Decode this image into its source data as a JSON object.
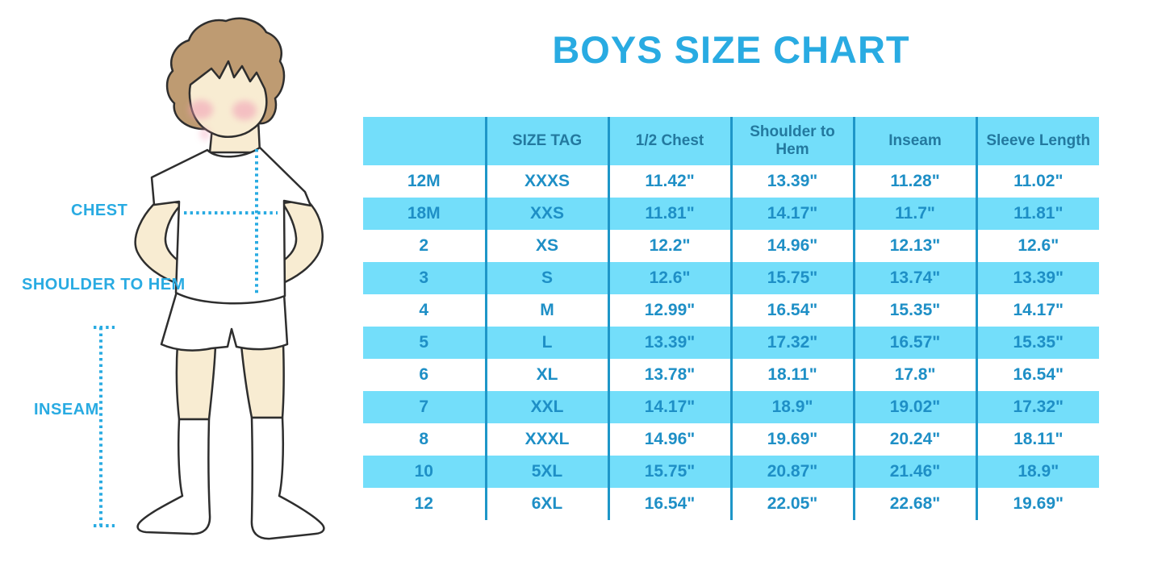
{
  "title": "BOYS SIZE CHART",
  "figure_labels": {
    "chest": "CHEST",
    "shoulder_to_hem": "SHOULDER TO HEM",
    "inseam": "INSEAM"
  },
  "chart_data": {
    "type": "table",
    "title": "BOYS SIZE CHART",
    "columns": [
      "",
      "SIZE TAG",
      "1/2 Chest",
      "Shoulder to Hem",
      "Inseam",
      "Sleeve Length"
    ],
    "rows": [
      [
        "12M",
        "XXXS",
        "11.42\"",
        "13.39\"",
        "11.28\"",
        "11.02\""
      ],
      [
        "18M",
        "XXS",
        "11.81\"",
        "14.17\"",
        "11.7\"",
        "11.81\""
      ],
      [
        "2",
        "XS",
        "12.2\"",
        "14.96\"",
        "12.13\"",
        "12.6\""
      ],
      [
        "3",
        "S",
        "12.6\"",
        "15.75\"",
        "13.74\"",
        "13.39\""
      ],
      [
        "4",
        "M",
        "12.99\"",
        "16.54\"",
        "15.35\"",
        "14.17\""
      ],
      [
        "5",
        "L",
        "13.39\"",
        "17.32\"",
        "16.57\"",
        "15.35\""
      ],
      [
        "6",
        "XL",
        "13.78\"",
        "18.11\"",
        "17.8\"",
        "16.54\""
      ],
      [
        "7",
        "XXL",
        "14.17\"",
        "18.9\"",
        "19.02\"",
        "17.32\""
      ],
      [
        "8",
        "XXXL",
        "14.96\"",
        "19.69\"",
        "20.24\"",
        "18.11\""
      ],
      [
        "10",
        "5XL",
        "15.75\"",
        "20.87\"",
        "21.46\"",
        "18.9\""
      ],
      [
        "12",
        "6XL",
        "16.54\"",
        "22.05\"",
        "22.68\"",
        "19.69\""
      ]
    ]
  },
  "colors": {
    "accent_blue": "#29ABE2",
    "band_blue": "#73DEFA",
    "divider_blue": "#1E96C8",
    "header_text": "#23799F",
    "cell_text": "#1E8FC6",
    "skin": "#F8ECD2",
    "hair": "#BE9B72",
    "cheek": "#F19CB5"
  }
}
